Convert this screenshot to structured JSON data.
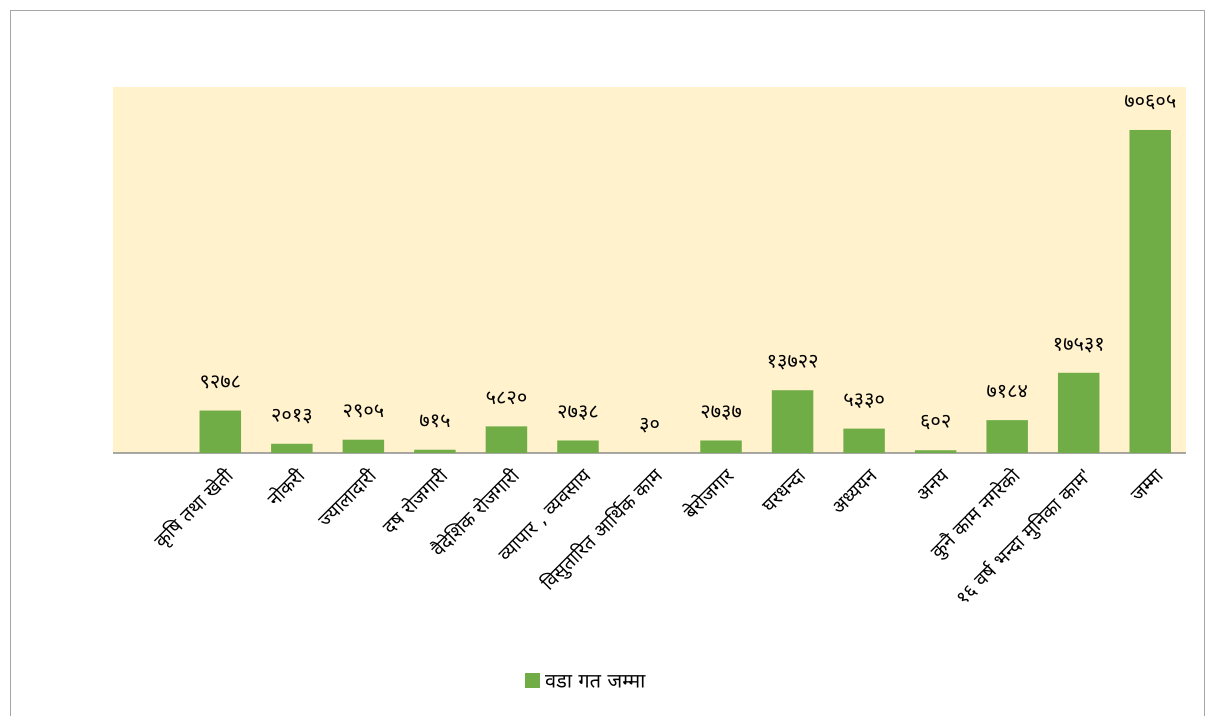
{
  "chart_data": {
    "type": "bar",
    "categories": [
      null,
      "कृषि तथा खेती",
      "नोकरी",
      "ज्यालादारी",
      "दष रोजगारी",
      "वैदेशिक रोजगारी",
      "व्यापार , व्यवसाय",
      "विसुतारित आर्थिक काम",
      "बेरोजगार",
      "घरधन्दा",
      "अध्ययन",
      "अनय",
      "कुनै काम नगरेको",
      "१६ वर्ष भन्दा मुनिका काम'",
      "जम्मा"
    ],
    "series": [
      {
        "name": "वडा गत जम्मा",
        "color": "#70ad47",
        "values": [
          null,
          9278,
          2013,
          2905,
          715,
          5820,
          2738,
          30,
          2737,
          13722,
          5330,
          602,
          7184,
          17531,
          70605
        ],
        "value_labels": [
          null,
          "९२७८",
          "२०१३",
          "२९०५",
          "७१५",
          "५८२०",
          "२७३८",
          "३०",
          "२७३७",
          "१३७२२",
          "५३३०",
          "६०२",
          "७१८४",
          "१७५३१",
          "७०६०५"
        ]
      }
    ],
    "ylim": [
      0,
      80000
    ],
    "plot_background": "#fff2cc",
    "legend": "bottom"
  }
}
